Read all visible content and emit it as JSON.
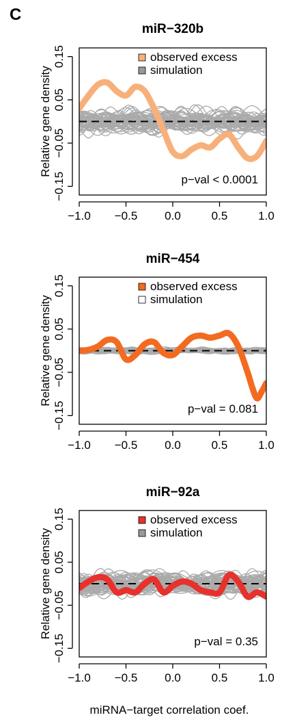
{
  "panel_label": "C",
  "xlabel": "miRNA−target correlation coef.",
  "colors": {
    "sim_line": "#aaaaaa",
    "sim_swatch_gray": "#999999",
    "dash": "#000000"
  },
  "chart_data": [
    {
      "type": "line",
      "title": "miR−320b",
      "ylabel": "Relative gene density",
      "xlim": [
        -1.0,
        1.0
      ],
      "ylim": [
        -0.17,
        0.17
      ],
      "xticks": [
        "−1.0",
        "−0.5",
        "0.0",
        "0.5",
        "1.0"
      ],
      "yticks": [
        "−0.15",
        "−0.05",
        "0.05",
        "0.15"
      ],
      "legend": [
        "observed excess",
        "simulation"
      ],
      "legend_position": "top-right",
      "annotation": "p−val < 0.0001",
      "observed_color": "#f8b07a",
      "sim_swatch": "#999999",
      "reference_line_y": 0,
      "simulation_spread": 0.035,
      "observed": {
        "x": [
          -1.0,
          -0.9,
          -0.8,
          -0.7,
          -0.6,
          -0.5,
          -0.4,
          -0.3,
          -0.2,
          -0.1,
          0.0,
          0.1,
          0.2,
          0.3,
          0.4,
          0.5,
          0.6,
          0.7,
          0.8,
          0.9,
          1.0
        ],
        "y": [
          0.03,
          0.06,
          0.085,
          0.09,
          0.07,
          0.06,
          0.08,
          0.07,
          0.03,
          -0.02,
          -0.07,
          -0.08,
          -0.065,
          -0.055,
          -0.06,
          -0.04,
          -0.03,
          -0.06,
          -0.085,
          -0.08,
          -0.045
        ]
      }
    },
    {
      "type": "line",
      "title": "miR−454",
      "ylabel": "Relative gene density",
      "xlim": [
        -1.0,
        1.0
      ],
      "ylim": [
        -0.17,
        0.17
      ],
      "xticks": [
        "−1.0",
        "−0.5",
        "0.0",
        "0.5",
        "1.0"
      ],
      "yticks": [
        "−0.15",
        "−0.05",
        "0.05",
        "0.15"
      ],
      "legend": [
        "observed excess",
        "simulation"
      ],
      "legend_position": "top-right",
      "annotation": "p−val = 0.081",
      "observed_color": "#f26b21",
      "sim_swatch": "#ffffff",
      "reference_line_y": 0,
      "simulation_spread": 0.008,
      "observed": {
        "x": [
          -1.0,
          -0.9,
          -0.8,
          -0.7,
          -0.6,
          -0.5,
          -0.4,
          -0.3,
          -0.2,
          -0.1,
          0.0,
          0.1,
          0.2,
          0.3,
          0.4,
          0.5,
          0.6,
          0.7,
          0.8,
          0.85,
          0.9,
          0.95,
          1.0
        ],
        "y": [
          0.0,
          0.002,
          0.01,
          0.025,
          0.02,
          -0.02,
          -0.01,
          0.015,
          0.02,
          -0.005,
          -0.01,
          0.01,
          0.03,
          0.035,
          0.03,
          0.035,
          0.04,
          0.01,
          -0.05,
          -0.085,
          -0.11,
          -0.095,
          -0.075
        ]
      }
    },
    {
      "type": "line",
      "title": "miR−92a",
      "ylabel": "Relative gene density",
      "xlim": [
        -1.0,
        1.0
      ],
      "ylim": [
        -0.17,
        0.17
      ],
      "xticks": [
        "−1.0",
        "−0.5",
        "0.0",
        "0.5",
        "1.0"
      ],
      "yticks": [
        "−0.15",
        "−0.05",
        "0.05",
        "0.15"
      ],
      "legend": [
        "observed excess",
        "simulation"
      ],
      "legend_position": "top-right",
      "annotation": "p−val = 0.35",
      "observed_color": "#e8312d",
      "sim_swatch": "#999999",
      "reference_line_y": 0,
      "simulation_spread": 0.035,
      "observed": {
        "x": [
          -1.0,
          -0.9,
          -0.8,
          -0.7,
          -0.6,
          -0.5,
          -0.4,
          -0.3,
          -0.2,
          -0.1,
          0.0,
          0.1,
          0.2,
          0.3,
          0.4,
          0.5,
          0.6,
          0.7,
          0.8,
          0.9,
          1.0
        ],
        "y": [
          -0.01,
          0.005,
          0.015,
          0.01,
          -0.02,
          -0.015,
          -0.02,
          0.0,
          0.01,
          -0.02,
          -0.005,
          0.005,
          0.0,
          -0.015,
          -0.02,
          -0.02,
          0.02,
          0.005,
          -0.03,
          -0.02,
          -0.03
        ]
      }
    }
  ]
}
